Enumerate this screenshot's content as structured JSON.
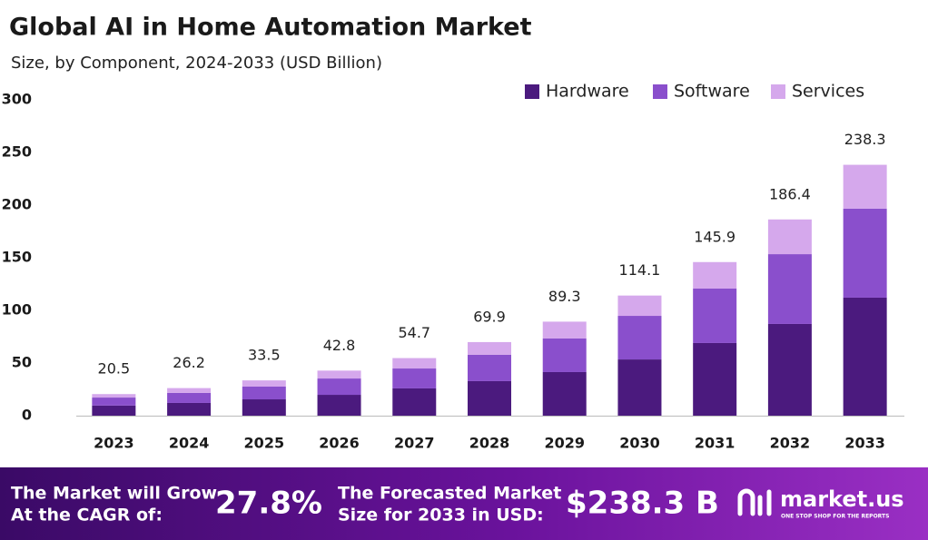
{
  "chart_data": {
    "type": "bar",
    "stacked": true,
    "title": "Global AI in Home Automation Market",
    "subtitle": "Size, by Component, 2024-2033 (USD Billion)",
    "categories": [
      "2023",
      "2024",
      "2025",
      "2026",
      "2027",
      "2028",
      "2029",
      "2030",
      "2031",
      "2032",
      "2033"
    ],
    "series": [
      {
        "name": "Hardware",
        "color": "#4b1a7e",
        "values": [
          9.6,
          12.1,
          15.5,
          19.8,
          25.9,
          32.8,
          41.4,
          53.4,
          69.0,
          87.1,
          112.1
        ]
      },
      {
        "name": "Software",
        "color": "#8a4fcc",
        "values": [
          7.6,
          9.5,
          12.1,
          15.5,
          18.9,
          25.0,
          31.9,
          41.4,
          51.7,
          66.3,
          84.5
        ]
      },
      {
        "name": "Services",
        "color": "#d5a8ec",
        "values": [
          3.3,
          4.6,
          5.9,
          7.5,
          9.9,
          12.1,
          16.0,
          19.3,
          25.2,
          33.0,
          41.7
        ]
      }
    ],
    "totals": [
      20.5,
      26.2,
      33.5,
      42.8,
      54.7,
      69.9,
      89.3,
      114.1,
      145.9,
      186.4,
      238.3
    ],
    "ylim": [
      0,
      300
    ],
    "yticks": [
      0,
      50,
      100,
      150,
      200,
      250,
      300
    ],
    "grid": false,
    "legend": "top-right"
  },
  "banner": {
    "cagr_text": [
      "The Market will Grow",
      "At the CAGR of:"
    ],
    "cagr_value": "27.8%",
    "forecast_text": [
      "The Forecasted Market",
      "Size for 2033 in USD:"
    ],
    "forecast_value": "$238.3 B",
    "brand": "market.us",
    "tagline": "ONE STOP SHOP FOR THE REPORTS"
  }
}
